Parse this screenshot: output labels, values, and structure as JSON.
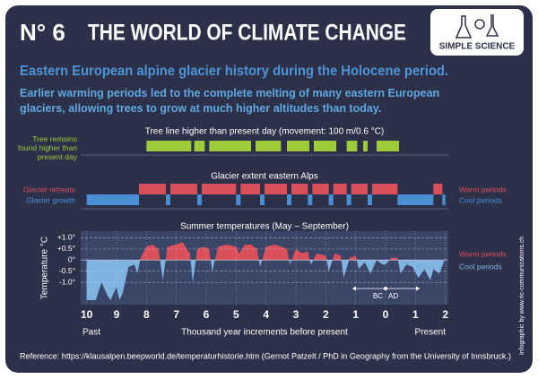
{
  "header": {
    "number": "N° 6",
    "title": "THE WORLD OF CLIMATE CHANGE",
    "logo": "SIMPLE SCIENCE"
  },
  "subtitle": "Eastern European alpine glacier history during the Holocene period.",
  "intro": "Earlier warming periods led to the complete melting of many eastern European glaciers, allowing trees to grow at much higher altitudes than today.",
  "chart_data": [
    {
      "type": "range",
      "title": "Tree line higher than present day (movement: 100 m/0.6 °C)",
      "xlim": [
        10.2,
        -2.1
      ],
      "series": [
        {
          "name": "Tree remains found higher than present day",
          "color": "#9ccc3c",
          "intervals": [
            [
              8.0,
              6.5
            ],
            [
              6.4,
              6.05
            ],
            [
              5.9,
              4.5
            ],
            [
              4.35,
              3.5
            ],
            [
              3.3,
              2.55
            ],
            [
              2.4,
              1.65
            ],
            [
              1.3,
              0.95
            ],
            [
              0.75,
              0.6
            ],
            [
              0.3,
              -0.45
            ]
          ]
        }
      ]
    },
    {
      "type": "range",
      "title": "Glacier extent eastern Alps",
      "xlim": [
        10.2,
        -2.1
      ],
      "series": [
        {
          "name": "Glacier retreats",
          "side_label": "Warm periods",
          "color": "#d9505a",
          "intervals": [
            [
              8.25,
              7.35
            ],
            [
              7.2,
              6.3
            ],
            [
              6.15,
              5.0
            ],
            [
              4.85,
              4.2
            ],
            [
              4.05,
              3.3
            ],
            [
              3.15,
              2.6
            ],
            [
              2.45,
              1.9
            ],
            [
              1.75,
              1.3
            ],
            [
              1.15,
              0.6
            ],
            [
              0.45,
              -0.4
            ],
            [
              -1.6,
              -1.9
            ]
          ]
        },
        {
          "name": "Glacier growth",
          "side_label": "Cool periods",
          "color": "#4a8fd6",
          "intervals": [
            [
              10.0,
              8.25
            ],
            [
              7.35,
              7.2
            ],
            [
              6.3,
              6.15
            ],
            [
              5.0,
              4.85
            ],
            [
              4.2,
              4.05
            ],
            [
              3.3,
              3.15
            ],
            [
              2.6,
              2.45
            ],
            [
              1.9,
              1.75
            ],
            [
              1.3,
              1.15
            ],
            [
              0.6,
              0.45
            ],
            [
              -0.4,
              -1.6
            ],
            [
              -1.9,
              -2.0
            ]
          ]
        }
      ]
    },
    {
      "type": "area",
      "title": "Summer temperatures (May – September)",
      "ylabel": "Temperature °C",
      "xlabel": "Thousand year increments before present",
      "x_start_label": "Past",
      "x_end_label": "Present",
      "legend": [
        "Warm periods",
        "Cool periods"
      ],
      "warm_color": "#d9505a",
      "cool_color": "#7fb4e2",
      "annotations": [
        "BC",
        "AD"
      ],
      "xlim": [
        10.2,
        -2.1
      ],
      "ylim": [
        -2.0,
        1.3
      ],
      "xticks": [
        10,
        9,
        8,
        7,
        6,
        5,
        4,
        3,
        2,
        1,
        0,
        {
          "value": -1,
          "label": "1"
        },
        {
          "value": -2,
          "label": "2"
        }
      ],
      "yticks": [
        {
          "value": 1,
          "label": "+1.0°"
        },
        {
          "value": 0.5,
          "label": "+0.5°"
        },
        {
          "value": 0,
          "label": "0°"
        },
        {
          "value": -0.5,
          "label": "-0.5°"
        },
        {
          "value": -1,
          "label": "-1.0°"
        }
      ],
      "x": [
        10,
        9.7,
        9.5,
        9.3,
        9.2,
        9.0,
        8.9,
        8.8,
        8.6,
        8.4,
        8.3,
        8.2,
        8.0,
        7.8,
        7.6,
        7.45,
        7.3,
        7.0,
        6.8,
        6.55,
        6.45,
        6.3,
        6.1,
        5.9,
        5.8,
        5.6,
        5.3,
        5.0,
        4.9,
        4.7,
        4.5,
        4.3,
        4.2,
        4.0,
        3.7,
        3.5,
        3.3,
        3.2,
        3.0,
        2.8,
        2.6,
        2.5,
        2.3,
        2.0,
        1.9,
        1.7,
        1.5,
        1.4,
        1.2,
        1.0,
        0.9,
        0.7,
        0.5,
        0.3,
        0.1,
        0,
        -0.2,
        -0.4,
        -0.5,
        -0.7,
        -0.9,
        -1.1,
        -1.3,
        -1.5,
        -1.6,
        -1.8,
        -2.0
      ],
      "values": [
        -1.8,
        -1.8,
        -1.0,
        -1.6,
        -1.8,
        -1.2,
        -1.8,
        -1.5,
        -0.3,
        -0.2,
        -0.6,
        0.1,
        0.6,
        0.7,
        0.5,
        -0.9,
        0.6,
        0.7,
        0.8,
        0.3,
        -1.0,
        0.5,
        0.6,
        0.5,
        -0.5,
        0.6,
        0.7,
        0.6,
        0.3,
        0.7,
        0.7,
        0.5,
        -0.3,
        0.6,
        0.7,
        0.6,
        0.5,
        -0.2,
        0.5,
        0.3,
        0.4,
        -0.2,
        0.3,
        0.2,
        -0.5,
        0.3,
        0.2,
        -0.8,
        0.1,
        0.2,
        -0.4,
        -0.1,
        -0.6,
        0.0,
        -0.2,
        -0.2,
        0.1,
        0.1,
        -0.6,
        -0.2,
        -0.3,
        -0.8,
        -0.4,
        -0.9,
        -0.4,
        -0.6,
        0.1
      ]
    }
  ],
  "reference": "Reference: https://klausalpen.beepworld.de/temperaturhistorie.htm (Gernot Patzelt / PhD in Geography from the University of Innsbruck.)",
  "credit": "Infographic by www.ric-communications.ch"
}
